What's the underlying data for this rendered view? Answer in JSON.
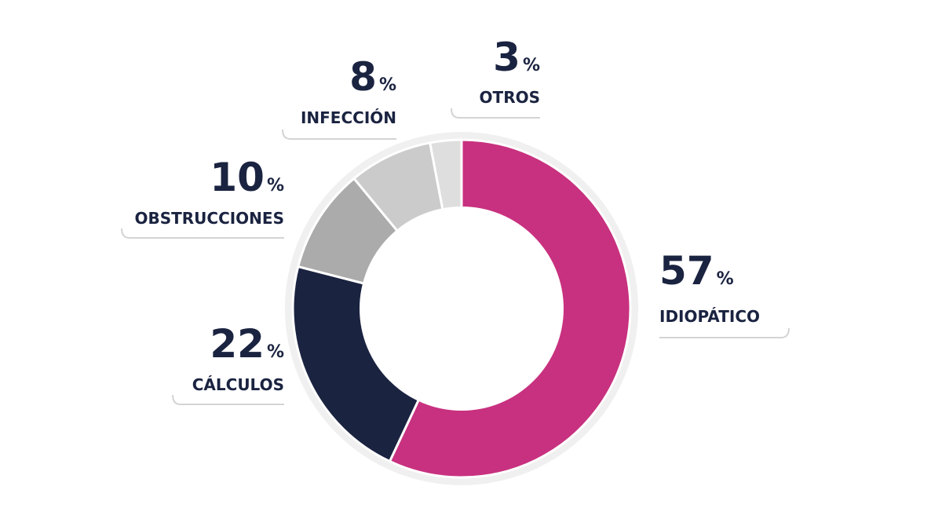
{
  "chart_data": {
    "type": "pie",
    "donut": true,
    "categories": [
      "IDIOPÁTICO",
      "CÁLCULOS",
      "OBSTRUCCIONES",
      "INFECCIÓN",
      "OTROS"
    ],
    "values": [
      57,
      22,
      10,
      8,
      3
    ],
    "unit": "%",
    "colors": [
      "#c8317f",
      "#1a2340",
      "#ababab",
      "#cbcbcb",
      "#dedede"
    ]
  }
}
